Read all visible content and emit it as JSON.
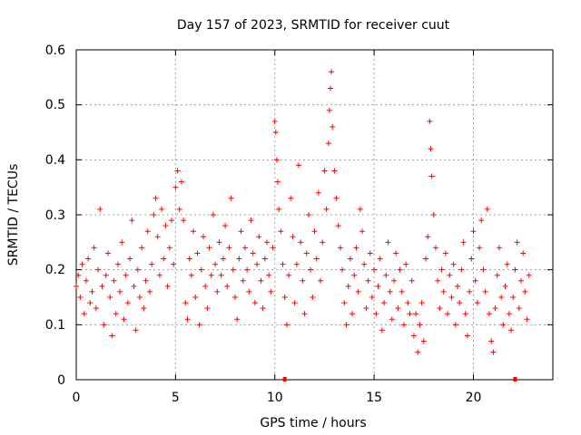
{
  "chart_data": {
    "type": "scatter",
    "title": "Day 157 of 2023, SRMTID for receiver cuut",
    "xlabel": "GPS time / hours",
    "ylabel": "SRMTID / TECUs",
    "xlim": [
      0,
      24
    ],
    "ylim": [
      0,
      0.6
    ],
    "xticks": [
      0,
      5,
      10,
      15,
      20
    ],
    "xtick_labels": [
      "0",
      "5",
      "10",
      "15",
      "20"
    ],
    "yticks": [
      0,
      0.1,
      0.2,
      0.3,
      0.4,
      0.5,
      0.6
    ],
    "ytick_labels": [
      "0",
      "0.1",
      "0.2",
      "0.3",
      "0.4",
      "0.5",
      "0.6"
    ],
    "grid": true,
    "marker": "+",
    "color": "#ff0000",
    "series": [
      {
        "name": "SRMTID",
        "points": [
          [
            0.0,
            0.17
          ],
          [
            0.1,
            0.19
          ],
          [
            0.2,
            0.15
          ],
          [
            0.3,
            0.21
          ],
          [
            0.4,
            0.12
          ],
          [
            0.5,
            0.18
          ],
          [
            0.6,
            0.22
          ],
          [
            0.7,
            0.14
          ],
          [
            0.8,
            0.16
          ],
          [
            0.9,
            0.24
          ],
          [
            1.0,
            0.13
          ],
          [
            1.1,
            0.2
          ],
          [
            1.2,
            0.31
          ],
          [
            1.3,
            0.17
          ],
          [
            1.4,
            0.1
          ],
          [
            1.5,
            0.19
          ],
          [
            1.6,
            0.23
          ],
          [
            1.7,
            0.15
          ],
          [
            1.8,
            0.08
          ],
          [
            1.9,
            0.18
          ],
          [
            2.0,
            0.12
          ],
          [
            2.1,
            0.21
          ],
          [
            2.2,
            0.16
          ],
          [
            2.3,
            0.25
          ],
          [
            2.4,
            0.11
          ],
          [
            2.5,
            0.19
          ],
          [
            2.6,
            0.14
          ],
          [
            2.7,
            0.22
          ],
          [
            2.8,
            0.29
          ],
          [
            2.9,
            0.17
          ],
          [
            3.0,
            0.09
          ],
          [
            3.1,
            0.2
          ],
          [
            3.2,
            0.15
          ],
          [
            3.3,
            0.24
          ],
          [
            3.4,
            0.13
          ],
          [
            3.5,
            0.18
          ],
          [
            3.6,
            0.27
          ],
          [
            3.7,
            0.16
          ],
          [
            3.8,
            0.21
          ],
          [
            3.9,
            0.3
          ],
          [
            4.0,
            0.33
          ],
          [
            4.1,
            0.26
          ],
          [
            4.2,
            0.19
          ],
          [
            4.3,
            0.31
          ],
          [
            4.4,
            0.22
          ],
          [
            4.5,
            0.28
          ],
          [
            4.6,
            0.17
          ],
          [
            4.7,
            0.24
          ],
          [
            4.8,
            0.29
          ],
          [
            4.9,
            0.21
          ],
          [
            5.0,
            0.35
          ],
          [
            5.1,
            0.38
          ],
          [
            5.2,
            0.31
          ],
          [
            5.3,
            0.36
          ],
          [
            5.4,
            0.29
          ],
          [
            5.5,
            0.14
          ],
          [
            5.6,
            0.11
          ],
          [
            5.7,
            0.22
          ],
          [
            5.8,
            0.19
          ],
          [
            5.9,
            0.27
          ],
          [
            6.0,
            0.15
          ],
          [
            6.1,
            0.23
          ],
          [
            6.2,
            0.1
          ],
          [
            6.3,
            0.2
          ],
          [
            6.4,
            0.26
          ],
          [
            6.5,
            0.17
          ],
          [
            6.6,
            0.13
          ],
          [
            6.7,
            0.24
          ],
          [
            6.8,
            0.19
          ],
          [
            6.9,
            0.3
          ],
          [
            7.0,
            0.21
          ],
          [
            7.1,
            0.16
          ],
          [
            7.2,
            0.25
          ],
          [
            7.3,
            0.19
          ],
          [
            7.4,
            0.22
          ],
          [
            7.5,
            0.28
          ],
          [
            7.6,
            0.17
          ],
          [
            7.7,
            0.24
          ],
          [
            7.8,
            0.33
          ],
          [
            7.9,
            0.2
          ],
          [
            8.0,
            0.15
          ],
          [
            8.1,
            0.11
          ],
          [
            8.2,
            0.22
          ],
          [
            8.3,
            0.27
          ],
          [
            8.4,
            0.18
          ],
          [
            8.5,
            0.24
          ],
          [
            8.6,
            0.2
          ],
          [
            8.7,
            0.16
          ],
          [
            8.8,
            0.29
          ],
          [
            8.9,
            0.23
          ],
          [
            9.0,
            0.14
          ],
          [
            9.1,
            0.21
          ],
          [
            9.2,
            0.26
          ],
          [
            9.3,
            0.18
          ],
          [
            9.4,
            0.13
          ],
          [
            9.5,
            0.22
          ],
          [
            9.6,
            0.25
          ],
          [
            9.7,
            0.19
          ],
          [
            9.8,
            0.16
          ],
          [
            9.9,
            0.24
          ],
          [
            10.0,
            0.47
          ],
          [
            10.05,
            0.45
          ],
          [
            10.1,
            0.4
          ],
          [
            10.15,
            0.36
          ],
          [
            10.2,
            0.31
          ],
          [
            10.3,
            0.27
          ],
          [
            10.4,
            0.21
          ],
          [
            10.5,
            0.15
          ],
          [
            10.6,
            0.1
          ],
          [
            10.7,
            0.19
          ],
          [
            10.8,
            0.33
          ],
          [
            10.9,
            0.26
          ],
          [
            11.0,
            0.14
          ],
          [
            11.1,
            0.21
          ],
          [
            11.2,
            0.39
          ],
          [
            11.3,
            0.25
          ],
          [
            11.4,
            0.18
          ],
          [
            11.5,
            0.12
          ],
          [
            11.6,
            0.23
          ],
          [
            11.7,
            0.3
          ],
          [
            11.8,
            0.2
          ],
          [
            11.9,
            0.15
          ],
          [
            12.0,
            0.27
          ],
          [
            12.1,
            0.22
          ],
          [
            12.2,
            0.34
          ],
          [
            12.3,
            0.18
          ],
          [
            12.4,
            0.25
          ],
          [
            12.5,
            0.38
          ],
          [
            12.6,
            0.31
          ],
          [
            12.7,
            0.43
          ],
          [
            12.75,
            0.49
          ],
          [
            12.8,
            0.53
          ],
          [
            12.85,
            0.56
          ],
          [
            12.9,
            0.46
          ],
          [
            13.0,
            0.38
          ],
          [
            13.1,
            0.33
          ],
          [
            13.2,
            0.28
          ],
          [
            13.3,
            0.24
          ],
          [
            13.4,
            0.2
          ],
          [
            13.5,
            0.14
          ],
          [
            13.6,
            0.1
          ],
          [
            13.7,
            0.17
          ],
          [
            13.8,
            0.22
          ],
          [
            13.9,
            0.12
          ],
          [
            14.0,
            0.19
          ],
          [
            14.1,
            0.24
          ],
          [
            14.2,
            0.16
          ],
          [
            14.3,
            0.31
          ],
          [
            14.4,
            0.27
          ],
          [
            14.5,
            0.21
          ],
          [
            14.6,
            0.13
          ],
          [
            14.7,
            0.18
          ],
          [
            14.8,
            0.23
          ],
          [
            14.9,
            0.15
          ],
          [
            15.0,
            0.2
          ],
          [
            15.1,
            0.12
          ],
          [
            15.2,
            0.17
          ],
          [
            15.3,
            0.22
          ],
          [
            15.4,
            0.09
          ],
          [
            15.5,
            0.14
          ],
          [
            15.6,
            0.19
          ],
          [
            15.7,
            0.25
          ],
          [
            15.8,
            0.16
          ],
          [
            15.9,
            0.11
          ],
          [
            16.0,
            0.18
          ],
          [
            16.1,
            0.23
          ],
          [
            16.2,
            0.13
          ],
          [
            16.3,
            0.2
          ],
          [
            16.4,
            0.16
          ],
          [
            16.5,
            0.1
          ],
          [
            16.6,
            0.21
          ],
          [
            16.7,
            0.14
          ],
          [
            16.8,
            0.12
          ],
          [
            16.9,
            0.18
          ],
          [
            17.0,
            0.08
          ],
          [
            17.1,
            0.12
          ],
          [
            17.2,
            0.05
          ],
          [
            17.3,
            0.1
          ],
          [
            17.4,
            0.14
          ],
          [
            17.5,
            0.07
          ],
          [
            17.6,
            0.22
          ],
          [
            17.7,
            0.26
          ],
          [
            17.8,
            0.47
          ],
          [
            17.85,
            0.42
          ],
          [
            17.9,
            0.37
          ],
          [
            18.0,
            0.3
          ],
          [
            18.1,
            0.24
          ],
          [
            18.2,
            0.18
          ],
          [
            18.3,
            0.13
          ],
          [
            18.4,
            0.2
          ],
          [
            18.5,
            0.16
          ],
          [
            18.6,
            0.23
          ],
          [
            18.7,
            0.12
          ],
          [
            18.8,
            0.19
          ],
          [
            18.9,
            0.15
          ],
          [
            19.0,
            0.21
          ],
          [
            19.1,
            0.1
          ],
          [
            19.2,
            0.17
          ],
          [
            19.3,
            0.14
          ],
          [
            19.4,
            0.2
          ],
          [
            19.5,
            0.25
          ],
          [
            19.6,
            0.12
          ],
          [
            19.7,
            0.08
          ],
          [
            19.8,
            0.16
          ],
          [
            19.9,
            0.22
          ],
          [
            20.0,
            0.27
          ],
          [
            20.1,
            0.18
          ],
          [
            20.2,
            0.14
          ],
          [
            20.3,
            0.24
          ],
          [
            20.4,
            0.29
          ],
          [
            20.5,
            0.2
          ],
          [
            20.6,
            0.16
          ],
          [
            20.7,
            0.31
          ],
          [
            20.8,
            0.12
          ],
          [
            20.9,
            0.07
          ],
          [
            21.0,
            0.05
          ],
          [
            21.1,
            0.13
          ],
          [
            21.2,
            0.19
          ],
          [
            21.3,
            0.24
          ],
          [
            21.4,
            0.15
          ],
          [
            21.5,
            0.1
          ],
          [
            21.6,
            0.17
          ],
          [
            21.7,
            0.21
          ],
          [
            21.8,
            0.12
          ],
          [
            21.9,
            0.09
          ],
          [
            22.0,
            0.15
          ],
          [
            22.1,
            0.2
          ],
          [
            22.2,
            0.25
          ],
          [
            22.3,
            0.13
          ],
          [
            22.4,
            0.18
          ],
          [
            22.5,
            0.23
          ],
          [
            22.6,
            0.16
          ],
          [
            22.7,
            0.11
          ],
          [
            22.8,
            0.19
          ]
        ]
      }
    ],
    "zero_markers": [
      10.5,
      22.1
    ]
  }
}
